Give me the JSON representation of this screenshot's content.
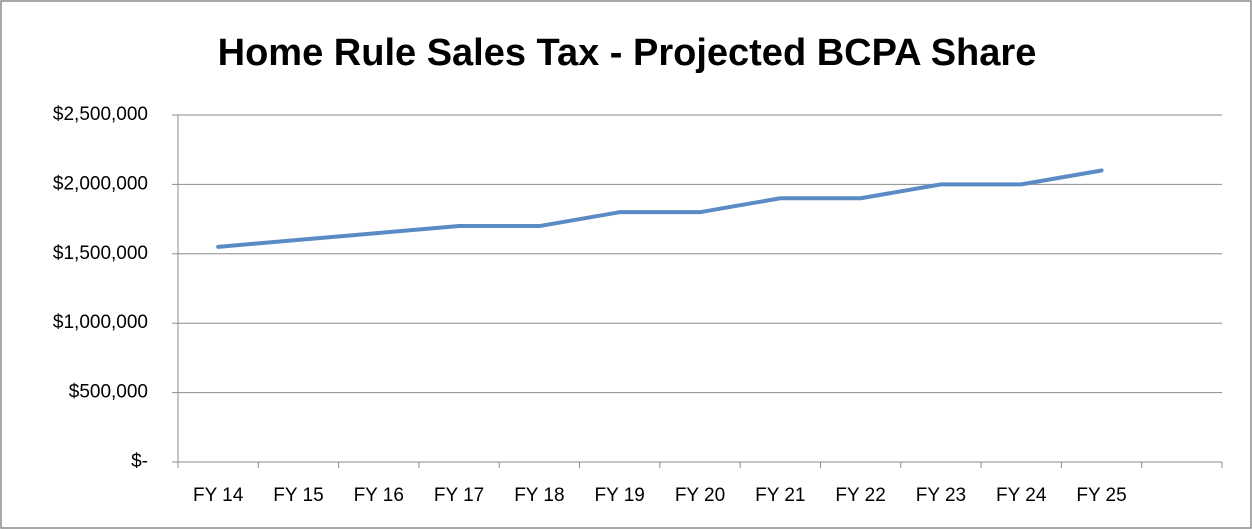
{
  "chart_data": {
    "type": "line",
    "title": "Home Rule Sales Tax - Projected BCPA Share",
    "categories": [
      "FY 14",
      "FY 15",
      "FY 16",
      "FY 17",
      "FY 18",
      "FY 19",
      "FY 20",
      "FY 21",
      "FY 22",
      "FY 23",
      "FY 24",
      "FY 25",
      null
    ],
    "values": [
      1550000,
      1600000,
      1650000,
      1700000,
      1700000,
      1800000,
      1800000,
      1900000,
      1900000,
      2000000,
      2000000,
      2100000,
      null
    ],
    "color": "#5b8bc5",
    "ylim": [
      0,
      2500000
    ],
    "yticks": [
      {
        "value": 0,
        "label": "$-"
      },
      {
        "value": 500000,
        "label": "$500,000"
      },
      {
        "value": 1000000,
        "label": "$1,000,000"
      },
      {
        "value": 1500000,
        "label": "$1,500,000"
      },
      {
        "value": 2000000,
        "label": "$2,000,000"
      },
      {
        "value": 2500000,
        "label": "$2,500,000"
      }
    ],
    "grid": true
  }
}
